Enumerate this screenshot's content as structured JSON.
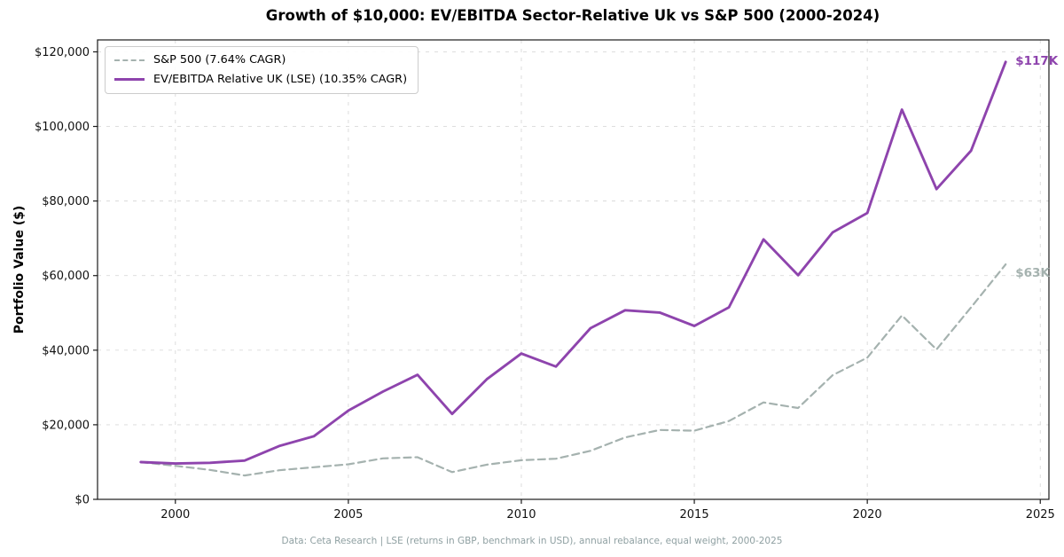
{
  "title": "Growth of $10,000: EV/EBITDA Sector-Relative Uk vs S&P 500 (2000-2024)",
  "footer": "Data: Ceta Research | LSE (returns in GBP, benchmark in USD), annual rebalance, equal weight, 2000-2025",
  "chart_data": {
    "type": "line",
    "title": "Growth of $10,000: EV/EBITDA Sector-Relative Uk vs S&P 500 (2000-2024)",
    "xlabel": "",
    "ylabel": "Portfolio Value ($)",
    "grid": true,
    "legend_position": "upper left",
    "x": [
      1999,
      2000,
      2001,
      2002,
      2003,
      2004,
      2005,
      2006,
      2007,
      2008,
      2009,
      2010,
      2011,
      2012,
      2013,
      2014,
      2015,
      2016,
      2017,
      2018,
      2019,
      2020,
      2021,
      2022,
      2023,
      2024
    ],
    "series": [
      {
        "name": "S&P 500 (7.64% CAGR)",
        "color": "#a5b2af",
        "style": "dashed",
        "end_label": "$63K",
        "values": [
          10000,
          9000,
          7900,
          6400,
          7800,
          8600,
          9400,
          11000,
          11300,
          7300,
          9300,
          10500,
          10900,
          13000,
          16600,
          18600,
          18400,
          21000,
          26000,
          24500,
          33300,
          38000,
          49300,
          40200,
          51500,
          63000
        ]
      },
      {
        "name": "EV/EBITDA Relative UK (LSE) (10.35% CAGR)",
        "color": "#8e44ad",
        "style": "solid",
        "end_label": "$117K",
        "values": [
          10000,
          9600,
          9800,
          10400,
          14300,
          16900,
          23800,
          28900,
          33400,
          22900,
          32200,
          39100,
          35600,
          45900,
          50700,
          50100,
          46500,
          51500,
          69700,
          60100,
          71600,
          76800,
          104500,
          83200,
          93500,
          117300
        ]
      }
    ],
    "xlim": [
      1997.75,
      2025.25
    ],
    "ylim": [
      0,
      123200
    ],
    "xticks": [
      2000,
      2005,
      2010,
      2015,
      2020,
      2025
    ],
    "yticks": [
      0,
      20000,
      40000,
      60000,
      80000,
      100000,
      120000
    ],
    "ytick_labels": [
      "$0",
      "$20,000",
      "$40,000",
      "$60,000",
      "$80,000",
      "$100,000",
      "$120,000"
    ]
  }
}
